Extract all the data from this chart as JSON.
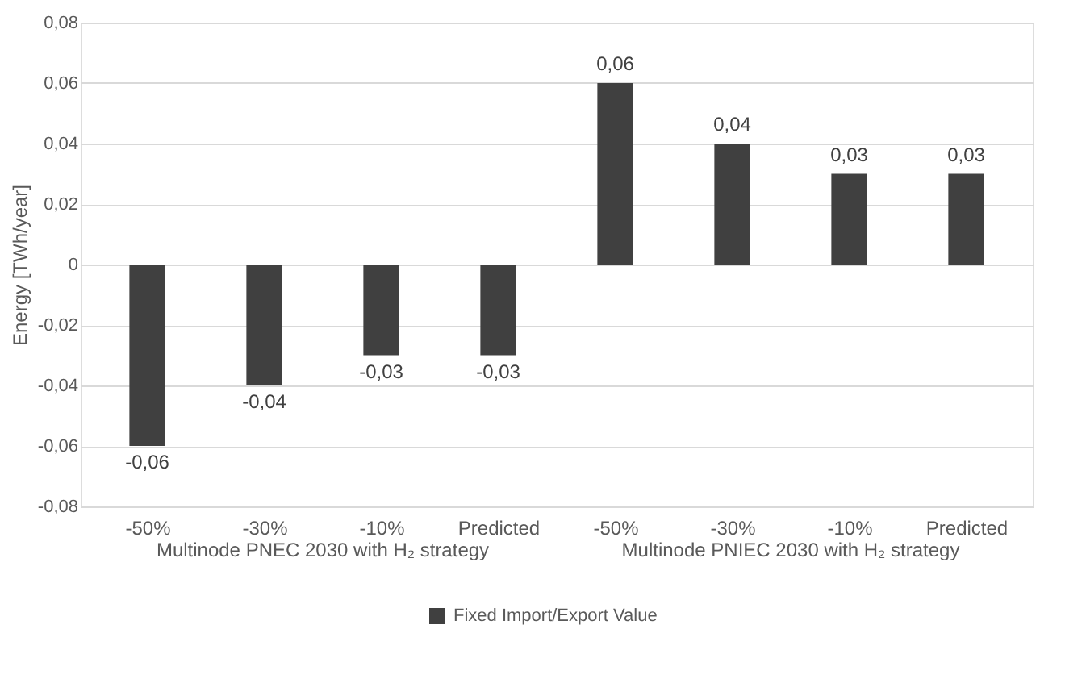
{
  "chart_data": {
    "type": "bar",
    "ylabel": "Energy [TWh/year]",
    "categories": [
      "-50%",
      "-30%",
      "-10%",
      "Predicted",
      "-50%",
      "-30%",
      "-10%",
      "Predicted"
    ],
    "series": [
      {
        "name": "Fixed Import/Export Value",
        "color": "#404040",
        "values": [
          -0.06,
          -0.04,
          -0.03,
          -0.03,
          0.06,
          0.04,
          0.03,
          0.03
        ],
        "value_labels": [
          "-0,06",
          "-0,04",
          "-0,03",
          "-0,03",
          "0,06",
          "0,04",
          "0,03",
          "0,03"
        ]
      }
    ],
    "ylim": [
      -0.08,
      0.08
    ],
    "yticks": [
      {
        "value": -0.08,
        "label": "-0,08"
      },
      {
        "value": -0.06,
        "label": "-0,06"
      },
      {
        "value": -0.04,
        "label": "-0,04"
      },
      {
        "value": -0.02,
        "label": "-0,02"
      },
      {
        "value": 0,
        "label": "0"
      },
      {
        "value": 0.02,
        "label": "0,02"
      },
      {
        "value": 0.04,
        "label": "0,04"
      },
      {
        "value": 0.06,
        "label": "0,06"
      },
      {
        "value": 0.08,
        "label": "0,08"
      }
    ],
    "annotations": [
      "Multinode PNEC 2030 with H₂ strategy",
      "Multinode PNIEC 2030 with H₂ strategy"
    ],
    "grid": "y",
    "legend": "bottom"
  }
}
